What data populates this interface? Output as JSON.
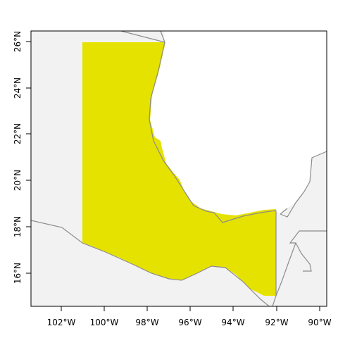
{
  "map": {
    "land_color": "#f2f2f2",
    "border_color": "#8c8c8c",
    "highlight_color": "#e6e200",
    "frame_color": "#000000",
    "x_ticks": [
      {
        "label": "102°W"
      },
      {
        "label": "100°W"
      },
      {
        "label": "98°W"
      },
      {
        "label": "96°W"
      },
      {
        "label": "94°W"
      },
      {
        "label": "92°W"
      },
      {
        "label": "90°W"
      }
    ],
    "y_ticks": [
      {
        "label": "16°N"
      },
      {
        "label": "18°N"
      },
      {
        "label": "20°N"
      },
      {
        "label": "22°N"
      },
      {
        "label": "24°N"
      },
      {
        "label": "26°N"
      }
    ]
  }
}
